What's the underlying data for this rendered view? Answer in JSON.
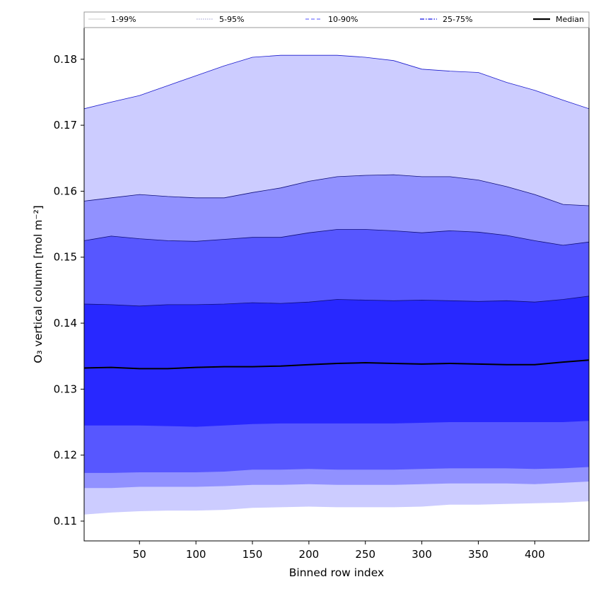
{
  "chart_data": {
    "type": "area",
    "title": "",
    "xlabel": "Binned row index",
    "ylabel": "O₃ vertical column [mol m⁻²]",
    "xlim": [
      1,
      448
    ],
    "ylim": [
      0.107,
      0.1848
    ],
    "xticks": [
      50,
      100,
      150,
      200,
      250,
      300,
      350,
      400
    ],
    "yticks": [
      0.11,
      0.12,
      0.13,
      0.14,
      0.15,
      0.16,
      0.17,
      0.18
    ],
    "grid": false,
    "legend_position": "top (above plot, full width)",
    "x": [
      1,
      25,
      50,
      75,
      100,
      125,
      150,
      175,
      200,
      225,
      250,
      275,
      300,
      325,
      350,
      375,
      400,
      425,
      448
    ],
    "series": [
      {
        "name": "1-99%",
        "color": "#ccccff",
        "lower": [
          0.111,
          0.1113,
          0.1115,
          0.1116,
          0.1116,
          0.1117,
          0.112,
          0.1121,
          0.1122,
          0.1121,
          0.1121,
          0.1121,
          0.1122,
          0.1125,
          0.1125,
          0.1126,
          0.1127,
          0.1128,
          0.113
        ],
        "upper": [
          0.1725,
          0.1735,
          0.1745,
          0.176,
          0.1775,
          0.179,
          0.1803,
          0.1806,
          0.1806,
          0.1806,
          0.1803,
          0.1798,
          0.1785,
          0.1782,
          0.178,
          0.1765,
          0.1753,
          0.1738,
          0.1725
        ]
      },
      {
        "name": "5-95%",
        "color": "#9191ff",
        "lower": [
          0.115,
          0.115,
          0.1152,
          0.1152,
          0.1152,
          0.1153,
          0.1155,
          0.1155,
          0.1156,
          0.1155,
          0.1155,
          0.1155,
          0.1156,
          0.1157,
          0.1157,
          0.1157,
          0.1156,
          0.1158,
          0.116
        ],
        "upper": [
          0.1585,
          0.159,
          0.1595,
          0.1592,
          0.159,
          0.159,
          0.1598,
          0.1605,
          0.1615,
          0.1622,
          0.1624,
          0.1625,
          0.1622,
          0.1622,
          0.1617,
          0.1607,
          0.1595,
          0.158,
          0.1578
        ]
      },
      {
        "name": "10-90%",
        "color": "#5757ff",
        "lower": [
          0.1173,
          0.1173,
          0.1174,
          0.1174,
          0.1174,
          0.1175,
          0.1178,
          0.1178,
          0.1179,
          0.1178,
          0.1178,
          0.1178,
          0.1179,
          0.118,
          0.118,
          0.118,
          0.1179,
          0.118,
          0.1182
        ],
        "upper": [
          0.1525,
          0.1532,
          0.1528,
          0.1525,
          0.1524,
          0.1527,
          0.153,
          0.153,
          0.1537,
          0.1542,
          0.1542,
          0.154,
          0.1537,
          0.154,
          0.1538,
          0.1533,
          0.1525,
          0.1518,
          0.1523
        ]
      },
      {
        "name": "25-75%",
        "color": "#2828ff",
        "lower": [
          0.1245,
          0.1245,
          0.1245,
          0.1244,
          0.1243,
          0.1245,
          0.1247,
          0.1248,
          0.1248,
          0.1248,
          0.1248,
          0.1248,
          0.1249,
          0.125,
          0.125,
          0.125,
          0.125,
          0.125,
          0.1252
        ]
      },
      {
        "name": "Median",
        "color": "#000000",
        "values": [
          0.1332,
          0.1333,
          0.1331,
          0.1331,
          0.1333,
          0.1334,
          0.1334,
          0.1335,
          0.1337,
          0.1339,
          0.134,
          0.1339,
          0.1338,
          0.1339,
          0.1338,
          0.1337,
          0.1337,
          0.1341,
          0.1344
        ]
      }
    ],
    "legend": [
      {
        "label": "1-99%",
        "color": "#ccccff",
        "style": "solid"
      },
      {
        "label": "5-95%",
        "color": "#9191ff",
        "style": "dotted"
      },
      {
        "label": "10-90%",
        "color": "#5757ff",
        "style": "dashed"
      },
      {
        "label": "25-75%",
        "color": "#2828ff",
        "style": "dashdot"
      },
      {
        "label": "Median",
        "color": "#000000",
        "style": "solid-bold"
      }
    ]
  }
}
